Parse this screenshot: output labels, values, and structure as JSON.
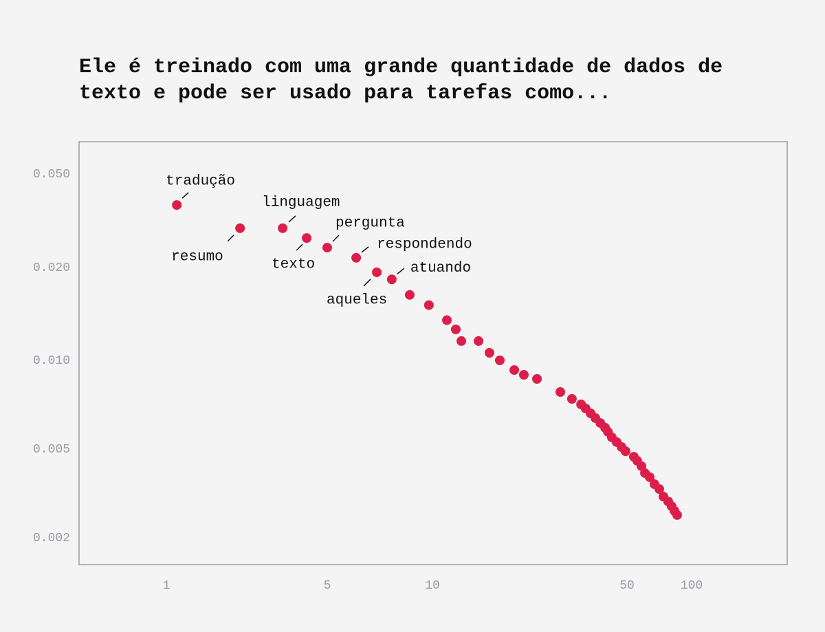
{
  "chart_data": {
    "type": "scatter",
    "title": [
      "Ele é treinado com uma grande quantidade de dados de",
      "texto e pode ser usado para tarefas como..."
    ],
    "x": [
      1.11,
      2.09,
      3.2,
      4.07,
      5.0,
      6.05,
      6.93,
      7.65,
      8.61,
      9.77,
      11.27,
      12.13,
      12.7,
      14.64,
      16.03,
      17.46,
      19.68,
      21.3,
      23.74,
      28.8,
      31.7,
      34.2,
      35.5,
      37.0,
      38.5,
      40.1,
      41.7,
      42.7,
      44.1,
      45.9,
      47.8,
      49.4,
      53.8,
      55.8,
      58.4,
      60.6,
      63.8,
      67.1,
      70.7,
      73.9,
      77.8,
      80.7,
      83.2,
      85.6
    ],
    "values": [
      0.0369,
      0.0294,
      0.0294,
      0.0267,
      0.0243,
      0.022,
      0.0193,
      0.0183,
      0.0163,
      0.0151,
      0.0135,
      0.0126,
      0.01155,
      0.01155,
      0.01058,
      0.01,
      0.00927,
      0.00893,
      0.00865,
      0.00781,
      0.0074,
      0.00709,
      0.00687,
      0.00661,
      0.00637,
      0.00613,
      0.00591,
      0.00572,
      0.00548,
      0.00528,
      0.00508,
      0.00489,
      0.00462,
      0.00443,
      0.00419,
      0.0039,
      0.00374,
      0.00348,
      0.00331,
      0.00306,
      0.00291,
      0.00277,
      0.00264,
      0.00253
    ],
    "point_labels": [
      "tradução",
      "resumo",
      "linguagem",
      "texto",
      "pergunta",
      "respondendo",
      "aqueles",
      "atuando",
      null,
      null,
      null,
      null,
      null,
      null,
      null,
      null,
      null,
      null,
      null,
      null,
      null,
      null,
      null,
      null,
      null,
      null,
      null,
      null,
      null,
      null,
      null,
      null,
      null,
      null,
      null,
      null,
      null,
      null,
      null,
      null,
      null,
      null,
      null,
      null
    ],
    "color": "#dc1f4a",
    "xlim": [
      0.42,
      280
    ],
    "xticks": [
      1,
      5,
      10,
      50,
      100
    ],
    "ylim": [
      0.068,
      0.0015
    ],
    "yticks": [
      {
        "value": 0.05,
        "label": "0.050"
      },
      {
        "value": 0.02,
        "label": "0.020"
      },
      {
        "value": 0.01,
        "label": "0.010"
      },
      {
        "value": 0.005,
        "label": "0.005"
      },
      {
        "value": 0.002,
        "label": "0.002"
      }
    ],
    "grid": false
  }
}
